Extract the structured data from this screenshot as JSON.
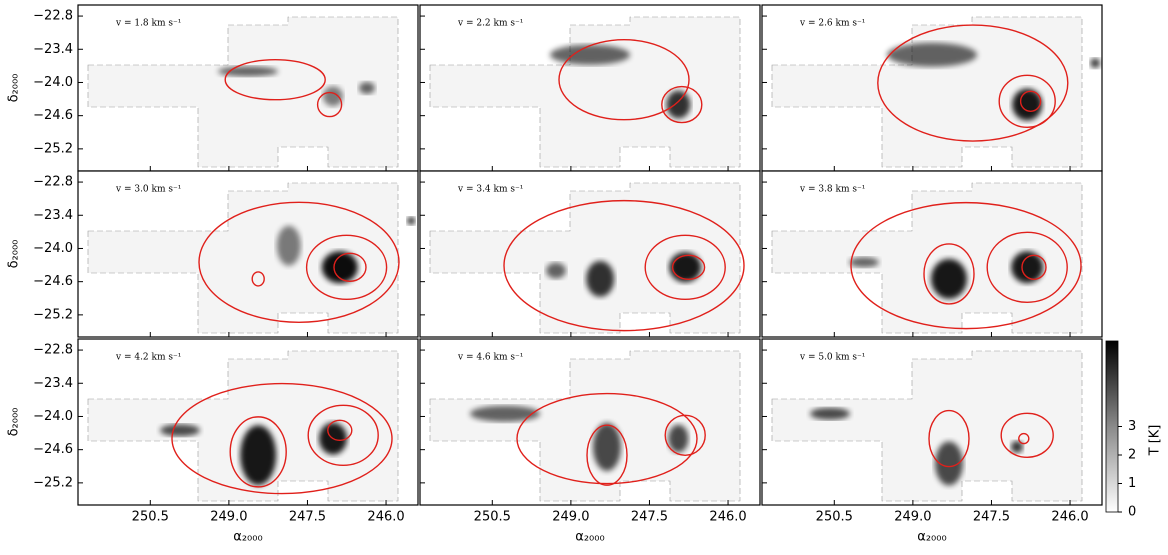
{
  "chart_data": {
    "type": "channel-maps",
    "xlabel": "α₂₀₀₀",
    "ylabel": "δ₂₀₀₀",
    "xlim": [
      251.88,
      245.39
    ],
    "ylim": [
      -25.6,
      -22.6
    ],
    "xticks": [
      250.5,
      {
        "value": 249,
        "label": "249.0"
      },
      247.5,
      {
        "value": 246,
        "label": "246.0"
      }
    ],
    "yticks": [
      {
        "value": -22.8,
        "label": "−22.8"
      },
      {
        "value": -23.4,
        "label": "−23.4"
      },
      {
        "value": -24,
        "label": "−24.0"
      },
      {
        "value": -24.6,
        "label": "−24.6"
      },
      {
        "value": -25.2,
        "label": "−25.2"
      }
    ],
    "panels": [
      "v = 1.8 km s⁻¹",
      "v = 2.2 km s⁻¹",
      "v = 2.6 km s⁻¹",
      "v = 3.0 km s⁻¹",
      "v = 3.4 km s⁻¹",
      "v = 3.8 km s⁻¹",
      "v = 4.2 km s⁻¹",
      "v = 4.6 km s⁻¹",
      "v = 5.0 km s⁻¹"
    ],
    "colorbar": {
      "label": "T [K]",
      "lim": [
        0,
        6
      ],
      "ticks": [
        0,
        1,
        2,
        3
      ]
    }
  }
}
